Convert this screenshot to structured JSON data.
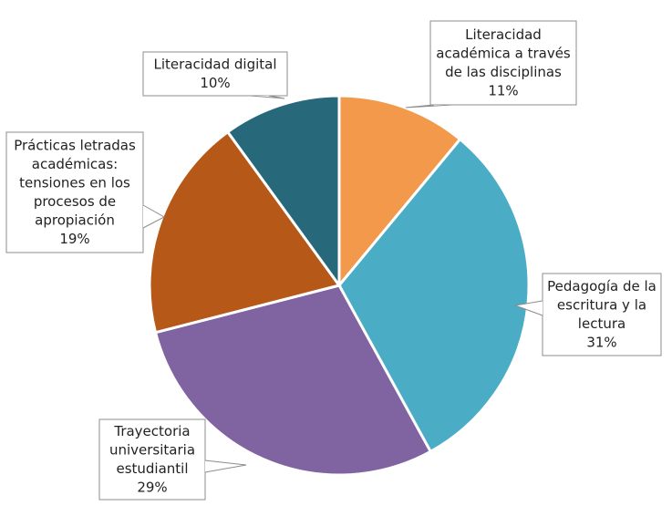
{
  "chart_data": {
    "type": "pie",
    "title": "",
    "slices": [
      {
        "label_lines": [
          "Literacidad",
          "académica a través",
          "de las disciplinas"
        ],
        "value": 11,
        "value_label": "11%",
        "color": "#F2994B"
      },
      {
        "label_lines": [
          "Pedagogía de la",
          "escritura y la",
          "lectura"
        ],
        "value": 31,
        "value_label": "31%",
        "color": "#4BACC6"
      },
      {
        "label_lines": [
          "Trayectoria",
          "universitaria",
          "estudiantil"
        ],
        "value": 29,
        "value_label": "29%",
        "color": "#8064A2"
      },
      {
        "label_lines": [
          "Prácticas letradas",
          "académicas:",
          "tensiones en los",
          "procesos de",
          "apropiación"
        ],
        "value": 19,
        "value_label": "19%",
        "color": "#B65817"
      },
      {
        "label_lines": [
          "Literacidad digital"
        ],
        "value": 10,
        "value_label": "10%",
        "color": "#27697B"
      }
    ],
    "legend": "none"
  }
}
